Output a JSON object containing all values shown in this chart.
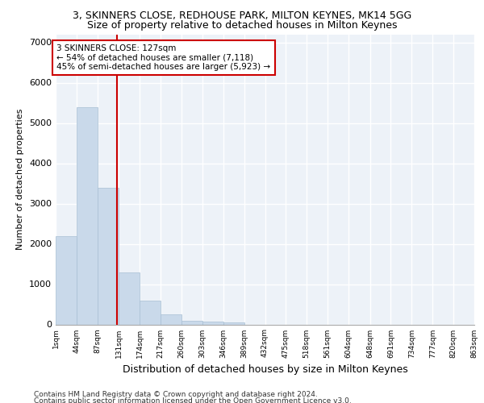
{
  "title1": "3, SKINNERS CLOSE, REDHOUSE PARK, MILTON KEYNES, MK14 5GG",
  "title2": "Size of property relative to detached houses in Milton Keynes",
  "xlabel": "Distribution of detached houses by size in Milton Keynes",
  "ylabel": "Number of detached properties",
  "bar_color": "#c9d9ea",
  "bar_edge_color": "#a8bfd4",
  "annotation_line_color": "#cc0000",
  "annotation_box_color": "#cc0000",
  "annotation_text": "3 SKINNERS CLOSE: 127sqm\n← 54% of detached houses are smaller (7,118)\n45% of semi-detached houses are larger (5,923) →",
  "property_size": 127,
  "footer1": "Contains HM Land Registry data © Crown copyright and database right 2024.",
  "footer2": "Contains public sector information licensed under the Open Government Licence v3.0.",
  "bin_edges": [
    1,
    44,
    87,
    131,
    174,
    217,
    260,
    303,
    346,
    389,
    432,
    475,
    518,
    561,
    604,
    648,
    691,
    734,
    777,
    820,
    863
  ],
  "bar_heights": [
    2200,
    5400,
    3400,
    1300,
    600,
    250,
    100,
    70,
    55,
    0,
    0,
    0,
    0,
    0,
    0,
    0,
    0,
    0,
    0,
    0
  ],
  "ylim": [
    0,
    7200
  ],
  "yticks": [
    0,
    1000,
    2000,
    3000,
    4000,
    5000,
    6000,
    7000
  ],
  "background_color": "#edf2f8",
  "grid_color": "#ffffff",
  "tick_labels": [
    "1sqm",
    "44sqm",
    "87sqm",
    "131sqm",
    "174sqm",
    "217sqm",
    "260sqm",
    "303sqm",
    "346sqm",
    "389sqm",
    "432sqm",
    "475sqm",
    "518sqm",
    "561sqm",
    "604sqm",
    "648sqm",
    "691sqm",
    "734sqm",
    "777sqm",
    "820sqm",
    "863sqm"
  ],
  "title1_fontsize": 9,
  "title2_fontsize": 9,
  "ylabel_fontsize": 8,
  "xlabel_fontsize": 9
}
